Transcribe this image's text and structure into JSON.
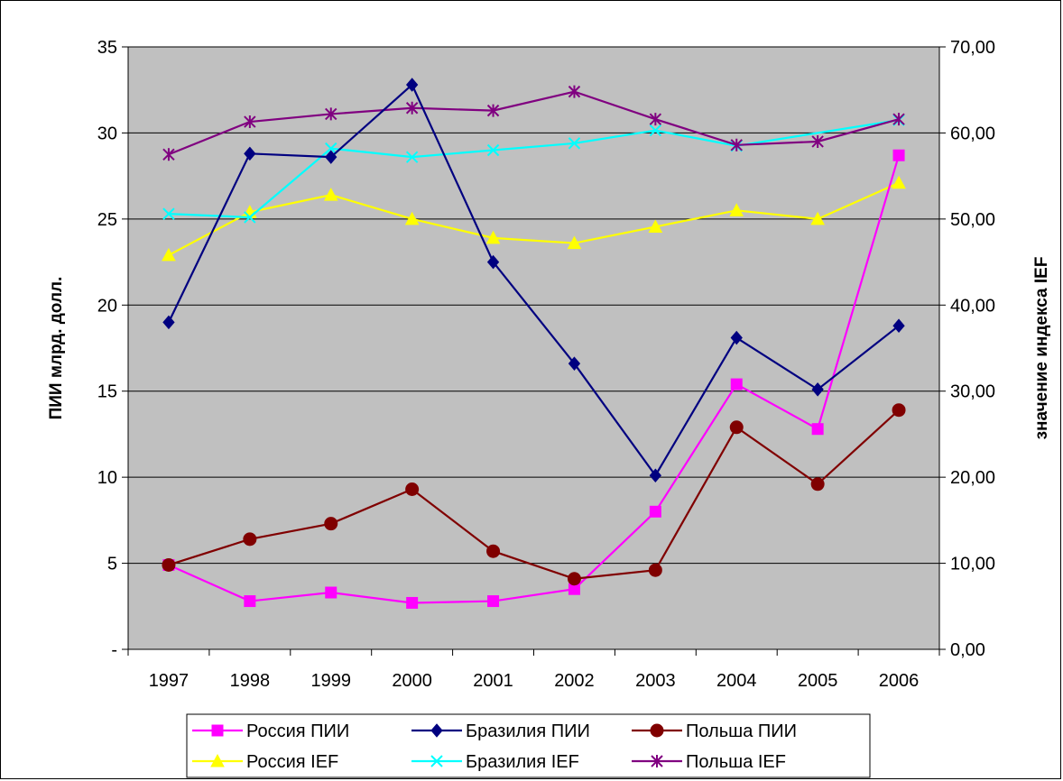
{
  "chart_data": {
    "type": "line",
    "categories": [
      "1997",
      "1998",
      "1999",
      "2000",
      "2001",
      "2002",
      "2003",
      "2004",
      "2005",
      "2006"
    ],
    "ylabel_left": "ПИИ млрд. долл.",
    "ylabel_right": "значение индекса IEF",
    "ylim_left": [
      0,
      35
    ],
    "ylim_right": [
      0,
      70
    ],
    "yticks_left": [
      "-",
      "5",
      "10",
      "15",
      "20",
      "25",
      "30",
      "35"
    ],
    "yticks_right": [
      "0,00",
      "10,00",
      "20,00",
      "30,00",
      "40,00",
      "50,00",
      "60,00",
      "70,00"
    ],
    "grid": true,
    "plot_background": "#c0c0c0",
    "legend_position": "bottom",
    "series": [
      {
        "name": "Россия ПИИ",
        "axis": "left",
        "color": "#ff00ff",
        "marker": "square",
        "values": [
          4.9,
          2.8,
          3.3,
          2.7,
          2.8,
          3.5,
          8.0,
          15.4,
          12.8,
          28.7
        ]
      },
      {
        "name": "Бразилия ПИИ",
        "axis": "left",
        "color": "#000080",
        "marker": "diamond",
        "values": [
          19.0,
          28.8,
          28.6,
          32.8,
          22.5,
          16.6,
          10.1,
          18.1,
          15.1,
          18.8
        ]
      },
      {
        "name": "Польша ПИИ",
        "axis": "left",
        "color": "#800000",
        "marker": "circle",
        "values": [
          4.9,
          6.4,
          7.3,
          9.3,
          5.7,
          4.1,
          4.6,
          12.9,
          9.6,
          13.9
        ]
      },
      {
        "name": "Россия IEF",
        "axis": "right",
        "color": "#ffff00",
        "marker": "triangle",
        "values": [
          45.8,
          50.8,
          52.8,
          50.0,
          47.8,
          47.2,
          49.1,
          51.0,
          50.0,
          54.2
        ]
      },
      {
        "name": "Бразилия IEF",
        "axis": "right",
        "color": "#00ffff",
        "marker": "x",
        "values": [
          50.6,
          50.2,
          58.2,
          57.2,
          58.0,
          58.8,
          60.3,
          58.5,
          null,
          61.5
        ]
      },
      {
        "name": "Польша IEF",
        "axis": "right",
        "color": "#800080",
        "marker": "star",
        "values": [
          57.5,
          61.3,
          62.2,
          62.9,
          62.6,
          64.8,
          61.6,
          58.6,
          59.0,
          61.6
        ]
      }
    ]
  }
}
